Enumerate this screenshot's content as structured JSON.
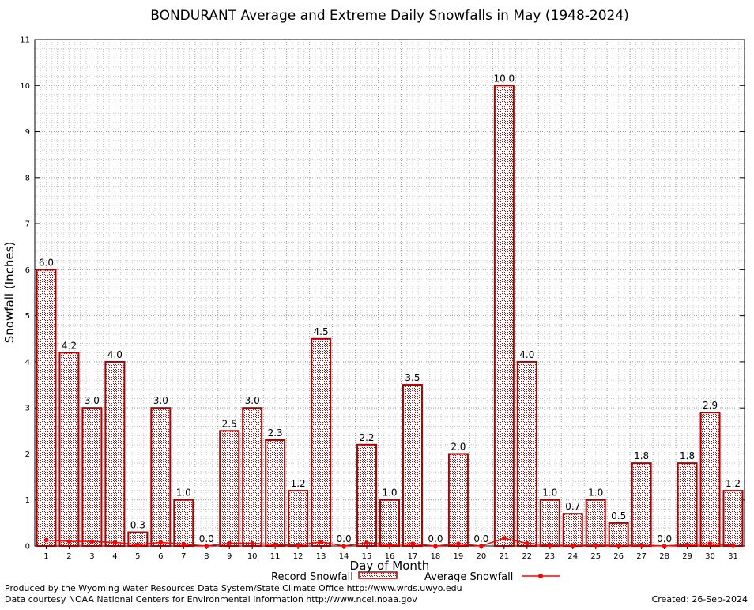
{
  "chart_data": {
    "type": "bar",
    "title": "BONDURANT Average and Extreme Daily Snowfalls in May (1948-2024)",
    "xlabel": "Day of Month",
    "ylabel": "Snowfall (Inches)",
    "ylim": [
      0,
      11
    ],
    "yticks": [
      "0",
      "1",
      "2",
      "3",
      "4",
      "5",
      "6",
      "7",
      "8",
      "9",
      "10",
      "11"
    ],
    "grid": true,
    "categories": [
      "1",
      "2",
      "3",
      "4",
      "5",
      "6",
      "7",
      "8",
      "9",
      "10",
      "11",
      "12",
      "13",
      "14",
      "15",
      "16",
      "17",
      "18",
      "19",
      "20",
      "21",
      "22",
      "23",
      "24",
      "25",
      "26",
      "27",
      "28",
      "29",
      "30",
      "31"
    ],
    "series": [
      {
        "name": "Record Snowfall",
        "kind": "bar",
        "color": "#b00000",
        "values": [
          6.0,
          4.2,
          3.0,
          4.0,
          0.3,
          3.0,
          1.0,
          0.0,
          2.5,
          3.0,
          2.3,
          1.2,
          4.5,
          0.0,
          2.2,
          1.0,
          3.5,
          0.0,
          2.0,
          0.0,
          10.0,
          4.0,
          1.0,
          0.7,
          1.0,
          0.5,
          1.8,
          0.0,
          1.8,
          2.9,
          1.2
        ],
        "labels": [
          "6.0",
          "4.2",
          "3.0",
          "4.0",
          "0.3",
          "3.0",
          "1.0",
          "0.0",
          "2.5",
          "3.0",
          "2.3",
          "1.2",
          "4.5",
          "0.0",
          "2.2",
          "1.0",
          "3.5",
          "0.0",
          "2.0",
          "0.0",
          "10.0",
          "4.0",
          "1.0",
          "0.7",
          "1.0",
          "0.5",
          "1.8",
          "0.0",
          "1.8",
          "2.9",
          "1.2"
        ]
      },
      {
        "name": "Average Snowfall",
        "kind": "line",
        "color": "#ff0000",
        "values": [
          0.13,
          0.1,
          0.1,
          0.08,
          0.03,
          0.08,
          0.04,
          0.0,
          0.06,
          0.06,
          0.03,
          0.02,
          0.09,
          0.0,
          0.07,
          0.03,
          0.05,
          0.0,
          0.05,
          0.0,
          0.17,
          0.06,
          0.02,
          0.01,
          0.02,
          0.01,
          0.02,
          0.0,
          0.03,
          0.05,
          0.02
        ]
      }
    ],
    "legend": {
      "position": "bottom"
    }
  },
  "footer": {
    "produced_by": "Produced by the Wyoming Water Resources Data System/State Climate Office http://www.wrds.uwyo.edu",
    "data_courtesy": "Data courtesy NOAA National Centers for Environmental Information http://www.ncei.noaa.gov",
    "created": "Created:  26-Sep-2024"
  }
}
